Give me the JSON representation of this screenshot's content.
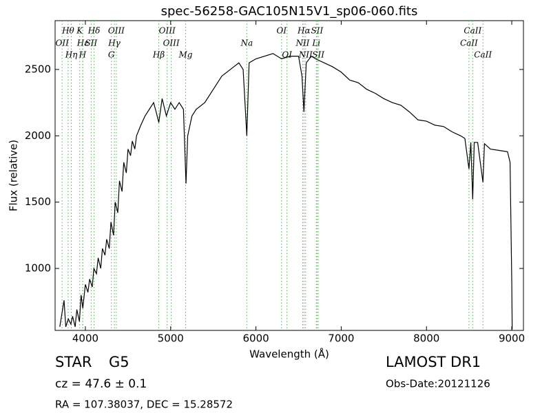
{
  "chart_data": {
    "type": "line",
    "title": "spec-56258-GAC105N15V1_sp06-060.fits",
    "xlabel": "Wavelength (Å)",
    "ylabel": "Flux (relative)",
    "xlim": [
      3645,
      9137
    ],
    "ylim": [
      533,
      2868
    ],
    "xticks": [
      4000,
      5000,
      6000,
      7000,
      8000,
      9000
    ],
    "yticks": [
      1000,
      1500,
      2000,
      2500
    ],
    "color": "#000000",
    "line_color": "#55aa55",
    "x": [
      3700,
      3730,
      3750,
      3770,
      3800,
      3830,
      3850,
      3880,
      3900,
      3930,
      3950,
      3970,
      4000,
      4030,
      4050,
      4080,
      4100,
      4130,
      4150,
      4180,
      4200,
      4230,
      4250,
      4280,
      4300,
      4330,
      4350,
      4380,
      4400,
      4430,
      4450,
      4480,
      4500,
      4530,
      4550,
      4580,
      4600,
      4650,
      4700,
      4750,
      4800,
      4830,
      4861,
      4900,
      4950,
      5000,
      5050,
      5100,
      5150,
      5180,
      5200,
      5250,
      5300,
      5400,
      5500,
      5600,
      5700,
      5800,
      5850,
      5893,
      5920,
      6000,
      6100,
      6200,
      6300,
      6400,
      6500,
      6540,
      6563,
      6590,
      6650,
      6700,
      6800,
      6900,
      7000,
      7100,
      7200,
      7300,
      7400,
      7500,
      7600,
      7700,
      7800,
      7900,
      8000,
      8100,
      8200,
      8300,
      8400,
      8450,
      8498,
      8520,
      8542,
      8560,
      8600,
      8662,
      8680,
      8750,
      8850,
      8950,
      8980,
      9000,
      9005
    ],
    "values": [
      560,
      680,
      760,
      560,
      620,
      580,
      640,
      560,
      690,
      600,
      800,
      700,
      880,
      820,
      920,
      860,
      1000,
      960,
      1080,
      1000,
      1150,
      1100,
      1220,
      1150,
      1350,
      1250,
      1500,
      1420,
      1660,
      1580,
      1800,
      1720,
      1900,
      1850,
      1960,
      1900,
      2000,
      2080,
      2150,
      2200,
      2250,
      2180,
      2100,
      2280,
      2150,
      2250,
      2200,
      2250,
      2200,
      1640,
      2000,
      2150,
      2200,
      2250,
      2350,
      2450,
      2500,
      2550,
      2500,
      2000,
      2550,
      2580,
      2600,
      2620,
      2580,
      2600,
      2600,
      2450,
      2180,
      2550,
      2600,
      2580,
      2550,
      2520,
      2480,
      2420,
      2400,
      2350,
      2320,
      2280,
      2250,
      2230,
      2180,
      2120,
      2110,
      2080,
      2070,
      2030,
      2000,
      1980,
      1750,
      1950,
      1520,
      1950,
      1950,
      1650,
      1940,
      1900,
      1890,
      1880,
      1800,
      900,
      540
    ],
    "line_labels": [
      [
        {
          "label": "Hθ",
          "x": 3798
        },
        {
          "label": "K",
          "x": 3934
        },
        {
          "label": "Hδ",
          "x": 4102
        },
        {
          "label": "OIII",
          "x": 4363
        },
        {
          "label": "OIII",
          "x": 4959
        },
        {
          "label": "OI",
          "x": 6300
        },
        {
          "label": "Hα",
          "x": 6563
        },
        {
          "label": "SII",
          "x": 6717
        },
        {
          "label": "CaII",
          "x": 8542
        }
      ],
      [
        {
          "label": "OII",
          "x": 3727
        },
        {
          "label": "Hε",
          "x": 3970
        },
        {
          "label": "SII",
          "x": 4068
        },
        {
          "label": "Hγ",
          "x": 4340
        },
        {
          "label": "OIII",
          "x": 5007
        },
        {
          "label": "Na",
          "x": 5893
        },
        {
          "label": "NII",
          "x": 6548
        },
        {
          "label": "Li",
          "x": 6708
        },
        {
          "label": "CaII",
          "x": 8498
        }
      ],
      [
        {
          "label": "Hη",
          "x": 3835
        },
        {
          "label": "H",
          "x": 3968
        },
        {
          "label": "G",
          "x": 4305
        },
        {
          "label": "Hβ",
          "x": 4861
        },
        {
          "label": "Mg",
          "x": 5175
        },
        {
          "label": "OI",
          "x": 6364
        },
        {
          "label": "NII",
          "x": 6583
        },
        {
          "label": "SII",
          "x": 6731
        },
        {
          "label": "CaII",
          "x": 8662
        }
      ]
    ]
  },
  "footer": {
    "class": "STAR",
    "subclass": "G5",
    "cz": "cz = 47.6 ± 0.1",
    "coords": "RA = 107.38037, DEC = 15.28572",
    "survey": "LAMOST DR1",
    "obs_date": "Obs-Date:20121126"
  }
}
